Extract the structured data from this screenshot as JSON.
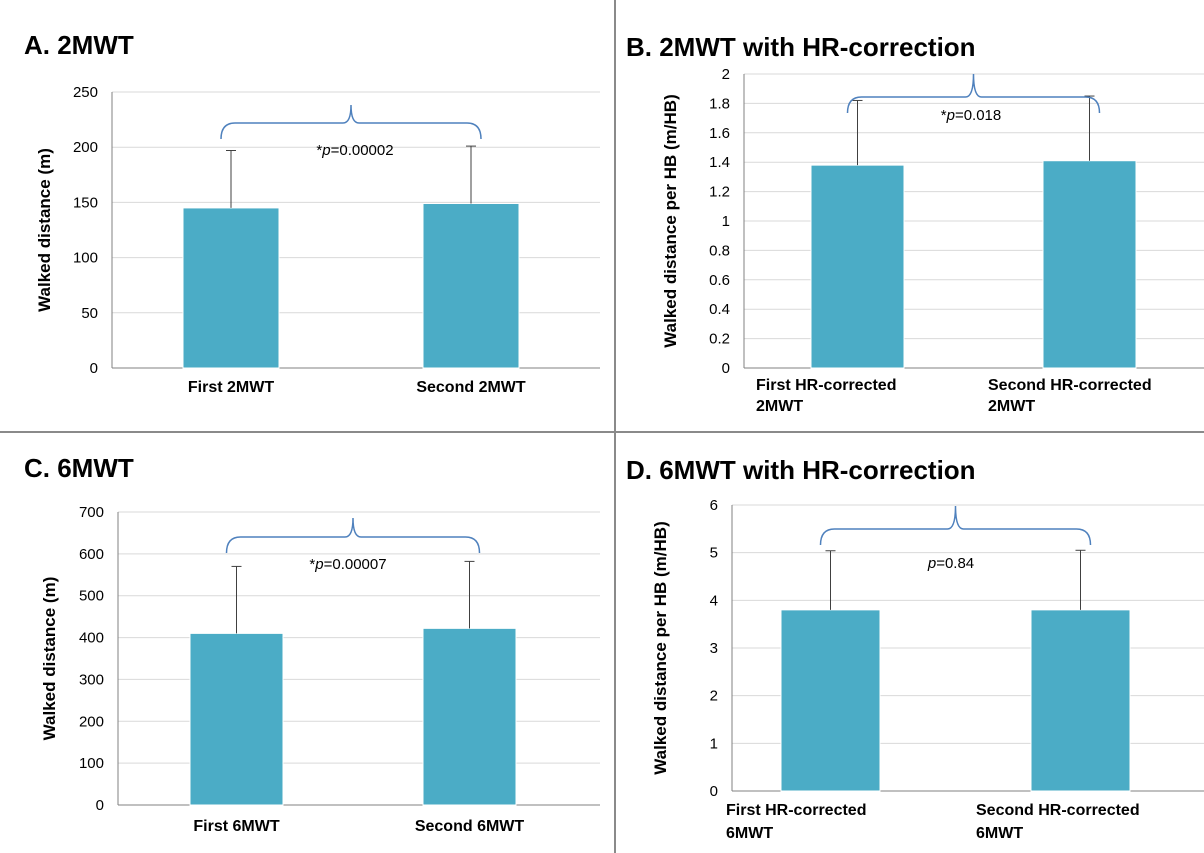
{
  "colors": {
    "bar": "#4bacc6",
    "bracket": "#4f81bd",
    "grid": "#d9d9d9",
    "axis": "#808080",
    "error": "#404040",
    "divider": "#8a8a8a"
  },
  "chart_data": [
    {
      "panel_title": "A. 2MWT",
      "type": "bar",
      "categories": [
        [
          "First  2MWT"
        ],
        [
          "Second  2MWT"
        ]
      ],
      "values": [
        145,
        149
      ],
      "error_upper": [
        197,
        201
      ],
      "ylabel": "Walked distance (m)",
      "ylim": [
        0,
        250
      ],
      "yticks": [
        0,
        50,
        100,
        150,
        200,
        250
      ],
      "ytick_labels": [
        "0",
        "50",
        "100",
        "150",
        "200",
        "250"
      ],
      "annotation": {
        "prefix": "*",
        "italic": "p",
        "suffix": "=0.00002"
      },
      "grid": true
    },
    {
      "panel_title": "B. 2MWT with HR-correction",
      "type": "bar",
      "categories": [
        [
          "First HR-corrected",
          "2MWT"
        ],
        [
          "Second  HR-corrected",
          "2MWT"
        ]
      ],
      "values": [
        1.38,
        1.41
      ],
      "error_upper": [
        1.82,
        1.85
      ],
      "ylabel": "Walked distance per HB (m/HB)",
      "ylim": [
        0,
        2
      ],
      "yticks": [
        0,
        0.2,
        0.4,
        0.6,
        0.8,
        1,
        1.2,
        1.4,
        1.6,
        1.8,
        2
      ],
      "ytick_labels": [
        "0",
        "0.2",
        "0.4",
        "0.6",
        "0.8",
        "1",
        "1.2",
        "1.4",
        "1.6",
        "1.8",
        "2"
      ],
      "annotation": {
        "prefix": "*",
        "italic": "p",
        "suffix": "=0.018"
      },
      "grid": true
    },
    {
      "panel_title": "C. 6MWT",
      "type": "bar",
      "categories": [
        [
          "First 6MWT"
        ],
        [
          "Second   6MWT"
        ]
      ],
      "values": [
        410,
        422
      ],
      "error_upper": [
        570,
        582
      ],
      "ylabel": "Walked distance (m)",
      "ylim": [
        0,
        700
      ],
      "yticks": [
        0,
        100,
        200,
        300,
        400,
        500,
        600,
        700
      ],
      "ytick_labels": [
        "0",
        "100",
        "200",
        "300",
        "400",
        "500",
        "600",
        "700"
      ],
      "annotation": {
        "prefix": "*",
        "italic": "p",
        "suffix": "=0.00007"
      },
      "grid": true
    },
    {
      "panel_title": "D. 6MWT with HR-correction",
      "type": "bar",
      "categories": [
        [
          "First HR-corrected",
          "6MWT"
        ],
        [
          "Second  HR-corrected",
          "6MWT"
        ]
      ],
      "values": [
        3.8,
        3.8
      ],
      "error_upper": [
        5.04,
        5.05
      ],
      "ylabel": "Walked distance per HB (m/HB)",
      "ylim": [
        0,
        6
      ],
      "yticks": [
        0,
        1,
        2,
        3,
        4,
        5,
        6
      ],
      "ytick_labels": [
        "0",
        "1",
        "2",
        "3",
        "4",
        "5",
        "6"
      ],
      "annotation": {
        "prefix": "",
        "italic": "p",
        "suffix": "=0.84"
      },
      "grid": true
    }
  ]
}
